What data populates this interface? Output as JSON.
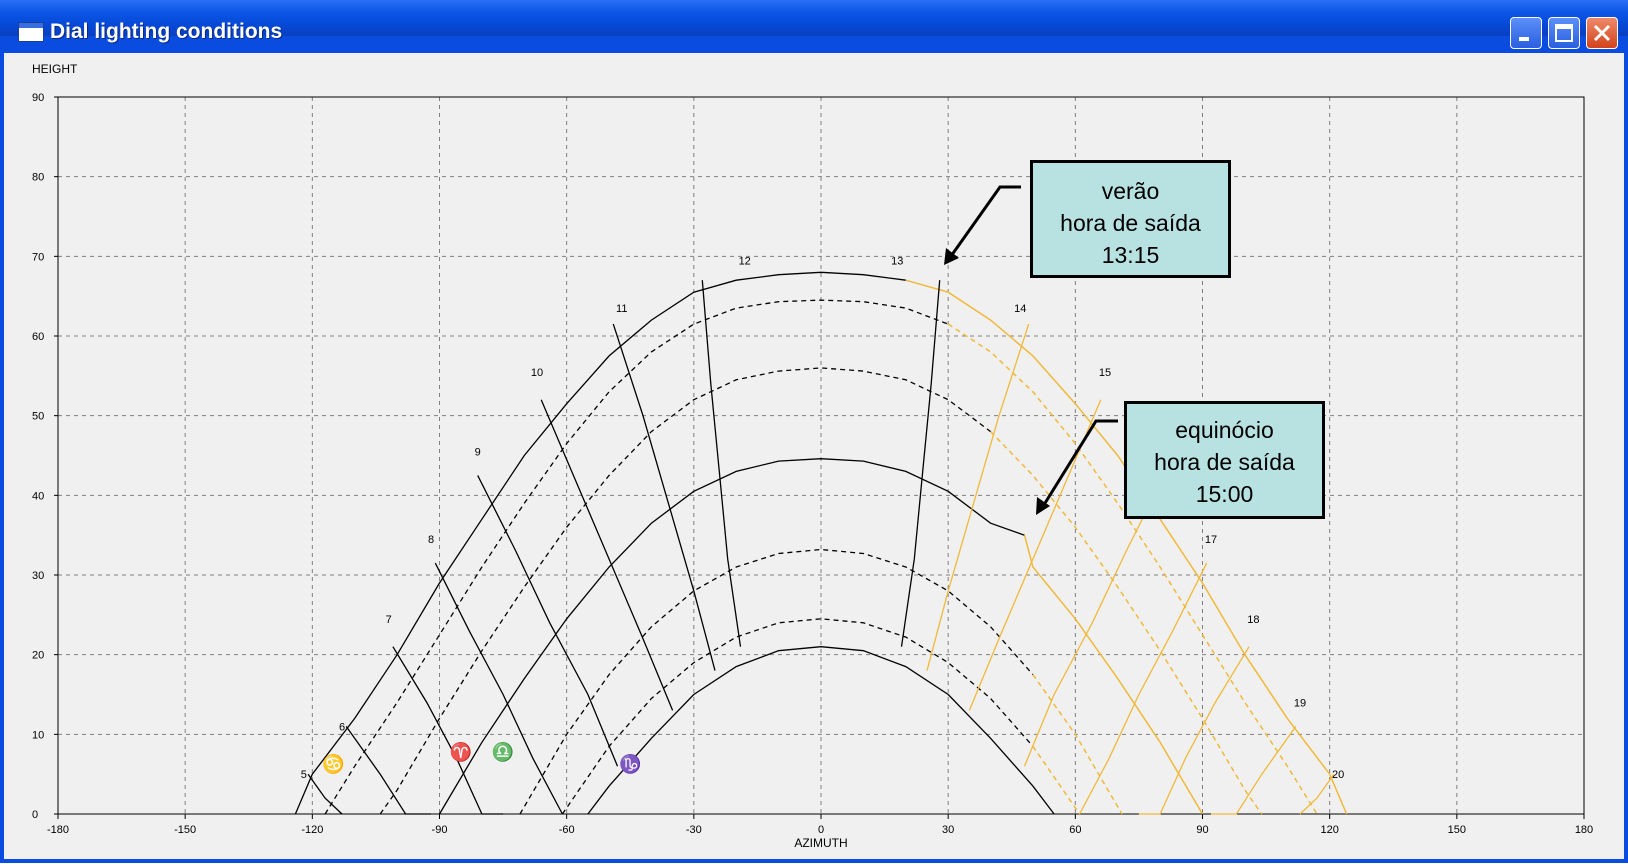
{
  "window": {
    "title": "Dial lighting conditions"
  },
  "icons": {
    "window": "window-icon",
    "minimize": "minimize-icon",
    "maximize": "maximize-icon",
    "close": "close-icon"
  },
  "callouts": {
    "summer": {
      "line1": "verão",
      "line2": "hora de saída",
      "line3": "13:15"
    },
    "equinox": {
      "line1": "equinócio",
      "line2": "hora de saída",
      "line3": "15:00"
    }
  },
  "chart_data": {
    "type": "line",
    "title": "",
    "xlabel": "AZIMUTH",
    "ylabel": "HEIGHT",
    "xlim": [
      -180,
      180
    ],
    "ylim": [
      0,
      90
    ],
    "x_ticks": [
      -180,
      -150,
      -120,
      -90,
      -60,
      -30,
      0,
      30,
      60,
      90,
      120,
      150,
      180
    ],
    "y_ticks": [
      0,
      10,
      20,
      30,
      40,
      50,
      60,
      70,
      80,
      90
    ],
    "grid": true,
    "colors": {
      "lit": "#000000",
      "shadowed": "#f0b93a"
    },
    "hour_labels": [
      "5",
      "6",
      "7",
      "8",
      "9",
      "10",
      "11",
      "12",
      "13",
      "14",
      "15",
      "17",
      "18",
      "19",
      "20"
    ],
    "zodiac_labels": [
      "♋",
      "♈",
      "♎",
      "♑"
    ],
    "day_curves": [
      {
        "name": "summer solstice",
        "style": "solid",
        "color_split_at_azimuth": 27,
        "x": [
          -124,
          -120,
          -110,
          -100,
          -90,
          -80,
          -70,
          -60,
          -50,
          -40,
          -30,
          -20,
          -10,
          0,
          10,
          20,
          30,
          40,
          50,
          60,
          70,
          80,
          90,
          100,
          110,
          120,
          124
        ],
        "y": [
          0,
          5,
          12,
          20,
          29,
          37,
          45,
          51.5,
          57.5,
          62,
          65.5,
          67,
          67.7,
          68,
          67.7,
          67,
          65.5,
          62,
          57.5,
          51.5,
          45,
          37,
          29,
          20,
          12,
          5,
          0
        ]
      },
      {
        "name": "between summer and equinox",
        "style": "dashed",
        "color_split_at_azimuth": 38,
        "x": [
          -117,
          -110,
          -100,
          -90,
          -80,
          -70,
          -60,
          -50,
          -40,
          -30,
          -20,
          -10,
          0,
          10,
          20,
          30,
          40,
          50,
          60,
          70,
          80,
          90,
          100,
          110,
          117
        ],
        "y": [
          0,
          6,
          14,
          22.5,
          31,
          39,
          46.5,
          53,
          58,
          61.5,
          63.5,
          64.3,
          64.5,
          64.3,
          63.5,
          61.5,
          58,
          53,
          46.5,
          39,
          31,
          22.5,
          14,
          6,
          0
        ]
      },
      {
        "name": "between",
        "style": "dashed",
        "color_split_at_azimuth": 48,
        "x": [
          -104,
          -100,
          -90,
          -80,
          -70,
          -60,
          -50,
          -40,
          -30,
          -20,
          -10,
          0,
          10,
          20,
          30,
          40,
          50,
          60,
          70,
          80,
          90,
          100,
          104
        ],
        "y": [
          0,
          3,
          12,
          20.5,
          28.5,
          36,
          42.5,
          48,
          52,
          54.5,
          55.6,
          56,
          55.6,
          54.5,
          52,
          48,
          42.5,
          36,
          28.5,
          20.5,
          12,
          3,
          0
        ]
      },
      {
        "name": "equinox",
        "style": "solid",
        "color_split_at_azimuth": 48,
        "x": [
          -90,
          -80,
          -70,
          -60,
          -50,
          -40,
          -30,
          -20,
          -10,
          0,
          10,
          20,
          30,
          40,
          48,
          50,
          60,
          70,
          80,
          90
        ],
        "y": [
          0,
          9,
          17,
          24.5,
          31,
          36.5,
          40.5,
          43,
          44.3,
          44.6,
          44.3,
          43,
          40.5,
          36.5,
          35,
          31,
          24.5,
          17,
          9,
          0
        ]
      },
      {
        "name": "between equinox and winter",
        "style": "dashed",
        "color_split_at_azimuth": 55,
        "x": [
          -71,
          -60,
          -50,
          -40,
          -30,
          -20,
          -10,
          0,
          10,
          20,
          30,
          40,
          50,
          60,
          71
        ],
        "y": [
          0,
          10,
          17.5,
          23.5,
          28,
          31,
          32.7,
          33.2,
          32.7,
          31,
          28,
          23.5,
          17.5,
          10,
          0
        ]
      },
      {
        "name": "between",
        "style": "dashed",
        "color_split_at_azimuth": 56,
        "x": [
          -61,
          -50,
          -40,
          -30,
          -20,
          -10,
          0,
          10,
          20,
          30,
          40,
          50,
          61
        ],
        "y": [
          0,
          8.5,
          14.5,
          19,
          22.2,
          24,
          24.5,
          24,
          22.2,
          19,
          14.5,
          8.5,
          0
        ]
      },
      {
        "name": "winter solstice",
        "style": "solid",
        "color_split_at_azimuth": 56,
        "x": [
          -55,
          -50,
          -40,
          -30,
          -20,
          -10,
          0,
          10,
          20,
          30,
          40,
          50,
          55
        ],
        "y": [
          0,
          3.5,
          9.5,
          15,
          18.5,
          20.5,
          21,
          20.5,
          18.5,
          15,
          9.5,
          3.5,
          0
        ]
      }
    ],
    "hour_curves": [
      {
        "hour": 12,
        "style": "solid",
        "x": [
          -28,
          -26,
          -24,
          -22,
          -19
        ],
        "y": [
          67,
          54,
          43,
          32,
          21
        ]
      },
      {
        "hour": 13,
        "style": "solid",
        "x": [
          28,
          26,
          24,
          22,
          19
        ],
        "y": [
          67,
          54,
          43,
          32,
          21
        ]
      },
      {
        "hour": 11,
        "style": "solid",
        "x": [
          -49,
          -42,
          -36,
          -30,
          -25
        ],
        "y": [
          61.5,
          50,
          39,
          28,
          18
        ]
      },
      {
        "hour": 14,
        "style": "solid",
        "x": [
          49,
          42,
          36,
          30,
          25
        ],
        "y": [
          61.5,
          50,
          39,
          28,
          18
        ]
      },
      {
        "hour": 10,
        "style": "solid",
        "x": [
          -66,
          -58,
          -50,
          -42,
          -35
        ],
        "y": [
          52,
          42,
          32,
          22,
          13
        ]
      },
      {
        "hour": 15,
        "style": "solid",
        "x": [
          66,
          58,
          50,
          42,
          35
        ],
        "y": [
          52,
          42,
          32,
          22,
          13
        ]
      },
      {
        "hour": 9,
        "style": "solid",
        "x": [
          -81,
          -72,
          -64,
          -55,
          -48
        ],
        "y": [
          42.5,
          33,
          24,
          15,
          6
        ]
      },
      {
        "hour": 16,
        "style": "solid",
        "x": [
          81,
          72,
          64,
          55,
          48
        ],
        "y": [
          42.5,
          33,
          24,
          15,
          6
        ]
      },
      {
        "hour": 8,
        "style": "solid",
        "x": [
          -91,
          -83,
          -75,
          -68,
          -61
        ],
        "y": [
          31.5,
          23,
          15,
          7,
          0
        ]
      },
      {
        "hour": 17,
        "style": "solid",
        "x": [
          91,
          83,
          75,
          68,
          61
        ],
        "y": [
          31.5,
          23,
          15,
          7,
          0
        ]
      },
      {
        "hour": 7,
        "style": "solid",
        "x": [
          -101,
          -93,
          -86,
          -80,
          -75
        ],
        "y": [
          21,
          14,
          7,
          0,
          0
        ]
      },
      {
        "hour": 18,
        "style": "solid",
        "x": [
          101,
          93,
          86,
          80,
          75
        ],
        "y": [
          21,
          14,
          7,
          0,
          0
        ]
      },
      {
        "hour": 6,
        "style": "solid",
        "x": [
          -112,
          -104,
          -98,
          -92
        ],
        "y": [
          11,
          5,
          0,
          0
        ]
      },
      {
        "hour": 19,
        "style": "solid",
        "x": [
          112,
          104,
          98,
          92
        ],
        "y": [
          11,
          5,
          0,
          0
        ]
      },
      {
        "hour": 5,
        "style": "solid",
        "x": [
          -121,
          -117,
          -113
        ],
        "y": [
          5,
          2,
          0
        ]
      },
      {
        "hour": 20,
        "style": "solid",
        "x": [
          121,
          117,
          113
        ],
        "y": [
          5,
          2,
          0
        ]
      }
    ]
  }
}
